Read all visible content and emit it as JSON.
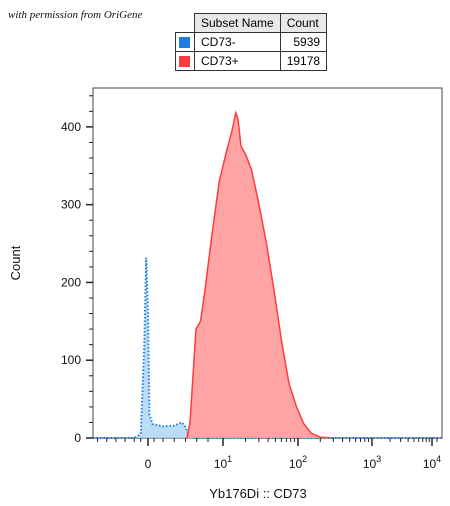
{
  "watermark": "with permission from OriGene",
  "legend": {
    "headers": [
      "Subset Name",
      "Count"
    ],
    "rows": [
      {
        "name": "CD73-",
        "count": "5939",
        "color": "#1e7fe0"
      },
      {
        "name": "CD73+",
        "count": "19178",
        "color": "#ff3b3b"
      }
    ]
  },
  "chart_data": {
    "type": "area",
    "xlabel": "Yb176Di :: CD73",
    "ylabel": "Count",
    "ylim": [
      0,
      450
    ],
    "y_ticks": [
      0,
      100,
      200,
      300,
      400
    ],
    "x_scale": "biexponential",
    "x_tick_labels": [
      {
        "base": "0",
        "exp": ""
      },
      {
        "base": "10",
        "exp": "1"
      },
      {
        "base": "10",
        "exp": "2"
      },
      {
        "base": "10",
        "exp": "3"
      },
      {
        "base": "10",
        "exp": "4"
      }
    ],
    "series": [
      {
        "name": "CD73-",
        "color": "#1e7fe0",
        "style": "dotted",
        "points": [
          [
            -0.6,
            0
          ],
          [
            -0.15,
            0
          ],
          [
            -0.08,
            5
          ],
          [
            -0.04,
            120
          ],
          [
            -0.02,
            232
          ],
          [
            0.0,
            160
          ],
          [
            0.02,
            30
          ],
          [
            0.06,
            18
          ],
          [
            0.2,
            15
          ],
          [
            0.35,
            16
          ],
          [
            0.45,
            20
          ],
          [
            0.5,
            14
          ],
          [
            0.55,
            2
          ],
          [
            0.6,
            0
          ],
          [
            4.2,
            0
          ]
        ]
      },
      {
        "name": "CD73+",
        "color": "#ff3b3b",
        "style": "solid",
        "points": [
          [
            0.52,
            0
          ],
          [
            0.56,
            20
          ],
          [
            0.6,
            80
          ],
          [
            0.64,
            140
          ],
          [
            0.7,
            150
          ],
          [
            0.76,
            190
          ],
          [
            0.85,
            260
          ],
          [
            0.95,
            330
          ],
          [
            1.05,
            370
          ],
          [
            1.12,
            395
          ],
          [
            1.17,
            418
          ],
          [
            1.2,
            410
          ],
          [
            1.24,
            375
          ],
          [
            1.3,
            365
          ],
          [
            1.38,
            345
          ],
          [
            1.48,
            300
          ],
          [
            1.58,
            250
          ],
          [
            1.68,
            190
          ],
          [
            1.78,
            125
          ],
          [
            1.88,
            70
          ],
          [
            1.98,
            40
          ],
          [
            2.08,
            18
          ],
          [
            2.18,
            6
          ],
          [
            2.3,
            1
          ],
          [
            2.45,
            0
          ]
        ]
      }
    ]
  }
}
